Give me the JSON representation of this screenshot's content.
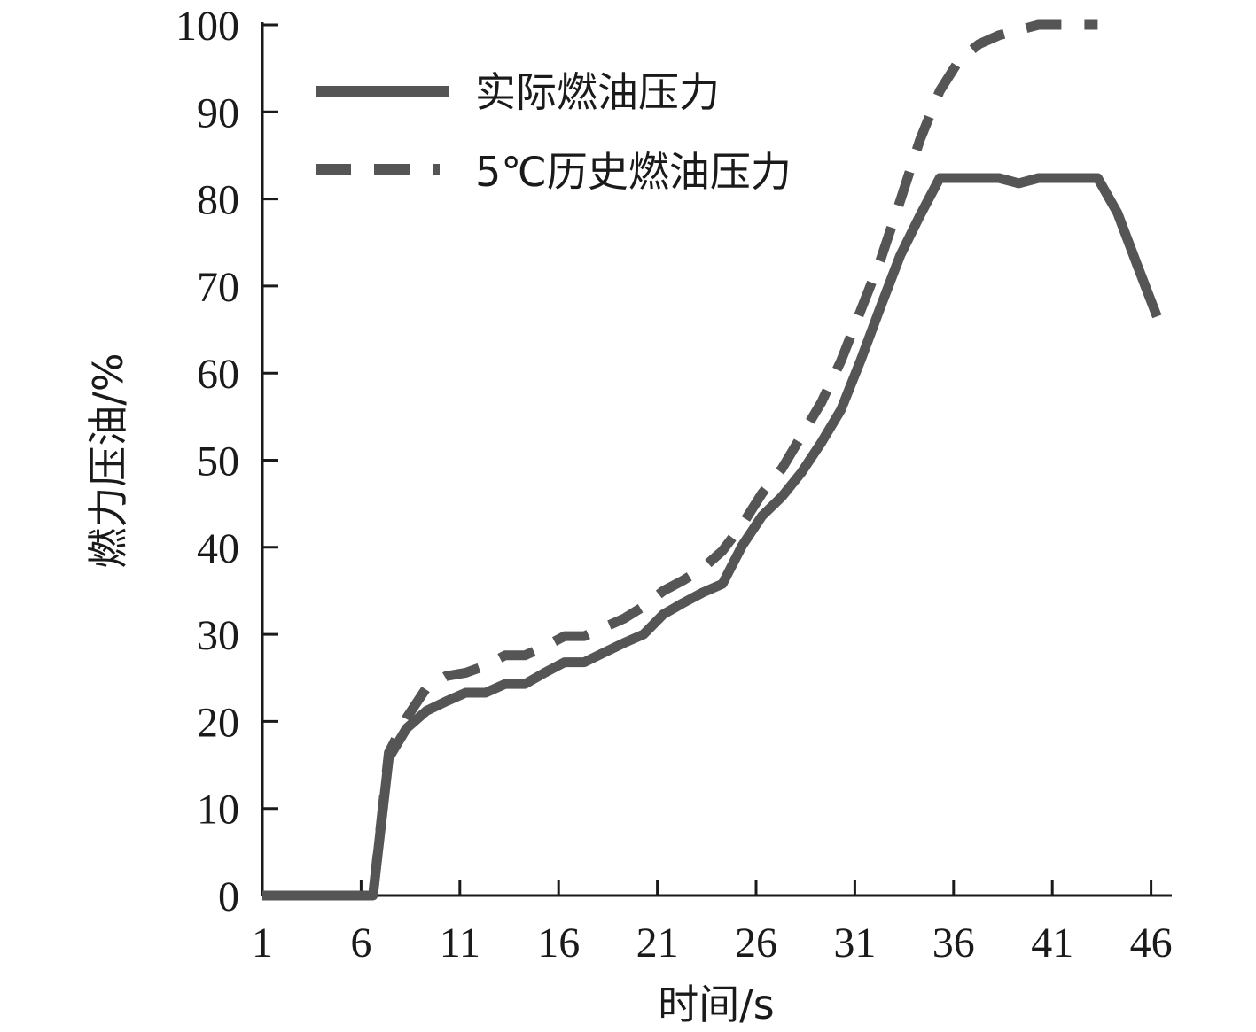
{
  "chart_data": {
    "type": "line",
    "xlabel": "时间/s",
    "ylabel": "燃力压油/%",
    "xlim": [
      1,
      47
    ],
    "ylim": [
      0,
      100
    ],
    "x_ticks": [
      1,
      6,
      11,
      16,
      21,
      26,
      31,
      36,
      41,
      46
    ],
    "y_ticks": [
      0,
      10,
      20,
      30,
      40,
      50,
      60,
      70,
      80,
      90,
      100
    ],
    "grid": false,
    "legend_position": "top-left",
    "series": [
      {
        "name": "实际燃油压力",
        "style": "solid",
        "color": "#555555",
        "x": [
          1,
          2,
          3,
          4,
          5,
          6,
          6.6,
          7.4,
          8.3,
          9.3,
          10.3,
          11.3,
          12.3,
          13.3,
          14.3,
          15.3,
          16.3,
          17.3,
          18.3,
          19.3,
          20.3,
          21.3,
          22.3,
          23.3,
          24.3,
          25.3,
          26.3,
          27.3,
          28.3,
          29.3,
          30.3,
          31.3,
          32.3,
          33.3,
          34.3,
          35.3,
          36.3,
          37.3,
          38.3,
          39.3,
          40.3,
          41.3,
          42.3,
          43.3,
          44.3,
          45.3,
          46.3
        ],
        "y": [
          0,
          0,
          0,
          0,
          0,
          0,
          0,
          15.8,
          19.2,
          21.2,
          22.3,
          23.3,
          23.3,
          24.3,
          24.3,
          25.6,
          26.8,
          26.8,
          27.9,
          29.0,
          30.0,
          32.3,
          33.6,
          34.8,
          35.8,
          40.2,
          43.6,
          45.8,
          48.6,
          52.0,
          55.8,
          61.5,
          67.6,
          73.5,
          78.1,
          82.4,
          82.4,
          82.4,
          82.4,
          81.8,
          82.4,
          82.4,
          82.4,
          82.4,
          78.4,
          72.4,
          66.5
        ]
      },
      {
        "name": "5℃历史燃油压力",
        "style": "dashed",
        "color": "#555555",
        "x": [
          1,
          2,
          3,
          4,
          5,
          6,
          6.6,
          7.4,
          8.3,
          9.3,
          10.3,
          11.3,
          12.3,
          13.3,
          14.3,
          15.3,
          16.3,
          17.3,
          18.3,
          19.3,
          20.3,
          21.3,
          22.3,
          23.3,
          24.3,
          25.3,
          26.3,
          27.3,
          28.3,
          29.3,
          30.3,
          31.3,
          32.3,
          33.3,
          34.3,
          35.3,
          36.3,
          37.3,
          38.3,
          39.3,
          40.3,
          41.3,
          42.3,
          43.3
        ],
        "y": [
          0,
          0,
          0,
          0,
          0,
          0,
          0,
          16.4,
          20.4,
          23.8,
          25.2,
          25.6,
          26.4,
          27.6,
          27.6,
          28.6,
          29.8,
          29.8,
          30.8,
          31.8,
          33.2,
          35.0,
          36.2,
          37.6,
          39.6,
          42.6,
          46.2,
          49.0,
          52.8,
          56.6,
          61.4,
          67.2,
          73.0,
          79.8,
          86.8,
          92.4,
          96.0,
          97.8,
          98.8,
          99.4,
          100,
          100,
          100,
          100
        ]
      }
    ]
  }
}
